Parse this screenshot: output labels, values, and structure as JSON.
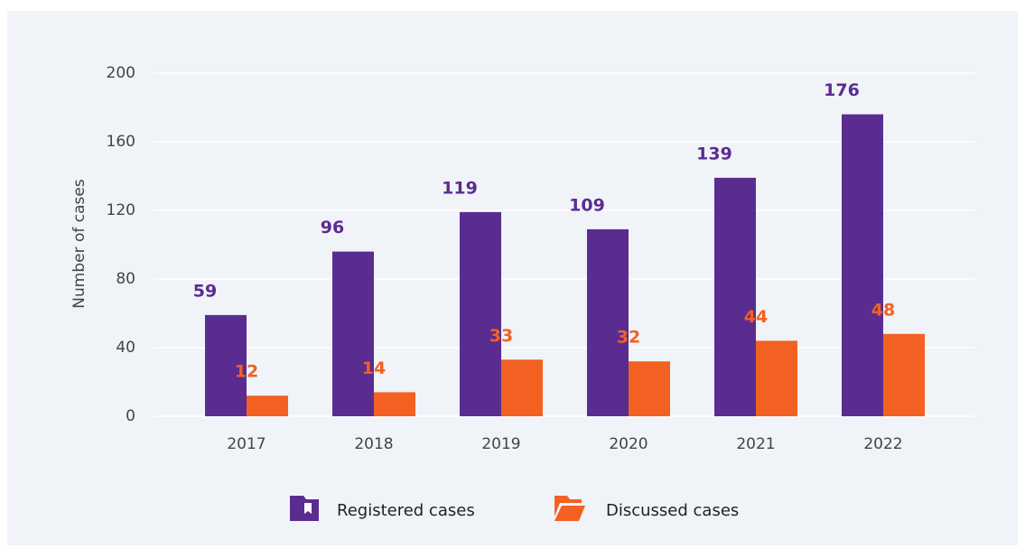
{
  "chart_data": {
    "type": "bar",
    "y_axis_label": "Number of cases",
    "categories": [
      "2017",
      "2018",
      "2019",
      "2020",
      "2021",
      "2022"
    ],
    "series": [
      {
        "name": "Registered cases",
        "color": "#5b2c8f",
        "values": [
          59,
          96,
          119,
          109,
          139,
          176
        ]
      },
      {
        "name": "Discussed cases",
        "color": "#f26122",
        "values": [
          12,
          14,
          33,
          32,
          44,
          48
        ]
      }
    ],
    "ylim": [
      0,
      200
    ],
    "yticks": [
      0,
      40,
      80,
      120,
      160,
      200
    ],
    "grid": true
  }
}
